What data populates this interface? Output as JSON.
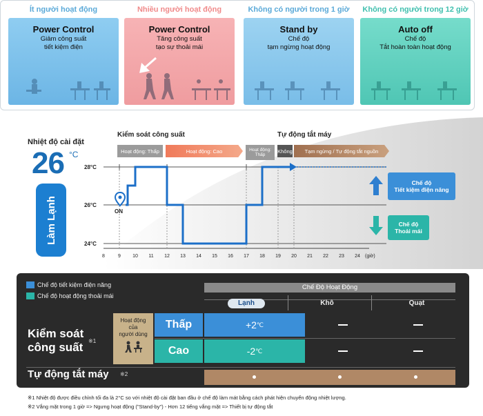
{
  "cards": [
    {
      "header": "Ít người hoạt động",
      "title": "Power Control",
      "line1": "Giảm công suất",
      "line2": "tiết kiệm điện",
      "header_color": "#5aa9d8",
      "box_color": "#7ec3ec"
    },
    {
      "header": "Nhiều người hoạt động",
      "title": "Power Control",
      "line1": "Tăng công suất",
      "line2": "tạo sự thoải mái",
      "header_color": "#f08a8a",
      "box_color": "#f5a8aa"
    },
    {
      "header": "Không có người trong 1 giờ",
      "title": "Stand by",
      "line1": "Chế độ",
      "line2": "tạm ngừng hoạt động",
      "header_color": "#5aa9d8",
      "box_color": "#86c5ea"
    },
    {
      "header": "Không có người trong 12 giờ",
      "title": "Auto off",
      "line1": "Chế độ",
      "line2": "Tắt hoàn toàn hoạt động",
      "header_color": "#3fbfae",
      "box_color": "#5ed1c0"
    }
  ],
  "setting": {
    "label": "Nhiệt độ cài đặt",
    "value": "26",
    "unit": "°C",
    "mode": "Làm Lạnh"
  },
  "graph": {
    "section_left": "Kiểm soát công suất",
    "section_right": "Tự động tắt máy",
    "stages": [
      "Hoạt động: Thấp",
      "Hoạt động: Cao",
      "Hoạt động: Thấp",
      "Không",
      "Tạm ngừng / Tự động tắt nguồn"
    ],
    "y_labels": [
      "28°C",
      "26°C",
      "24°C"
    ],
    "x_labels": [
      "8",
      "9",
      "10",
      "11",
      "12",
      "13",
      "14",
      "15",
      "16",
      "17",
      "18",
      "19",
      "20",
      "21",
      "22",
      "23",
      "24"
    ],
    "x_unit": "(giờ)",
    "on_label": "ON",
    "callout_up": {
      "line1": "Chế độ",
      "line2": "Tiết kiệm điện năng"
    },
    "callout_down": {
      "line1": "Chế độ",
      "line2": "Thoải mái"
    }
  },
  "table": {
    "legend": [
      {
        "label": "Chế độ tiết kiệm điện năng",
        "color": "#3b8fd8"
      },
      {
        "label": "Chế độ hoạt động thoải mái",
        "color": "#2bb5a8"
      }
    ],
    "header_group": "Chế Độ Hoạt Động",
    "columns": [
      "Lạnh",
      "Khô",
      "Quạt"
    ],
    "row1_label": "Kiểm soát\ncông suất",
    "row1_label_line1": "Kiểm soát",
    "row1_label_line2": "công suất",
    "note1_mark": "※1",
    "activity_label_line1": "Hoạt động",
    "activity_label_line2": "của",
    "activity_label_line3": "người dùng",
    "low": "Thấp",
    "high": "Cao",
    "low_value": "+2",
    "high_value": "-2",
    "deg_unit": "℃",
    "row2_label": "Tự động tắt máy",
    "note2_mark": "※2"
  },
  "footnotes": {
    "n1_mark": "※1",
    "n1": "Nhiệt độ được điều chỉnh tối đa là 2°C so với nhiệt độ cài đặt ban đầu ở chế độ làm mát bằng cách phát hiện chuyển động nhiệt lượng.",
    "n2_mark": "※2",
    "n2": "Vắng mặt trong 1 giờ => Ngưng hoạt động (\"Stand-by\") - Hơn 12 tiếng vắng mặt => Thiết bị tự động tắt"
  }
}
